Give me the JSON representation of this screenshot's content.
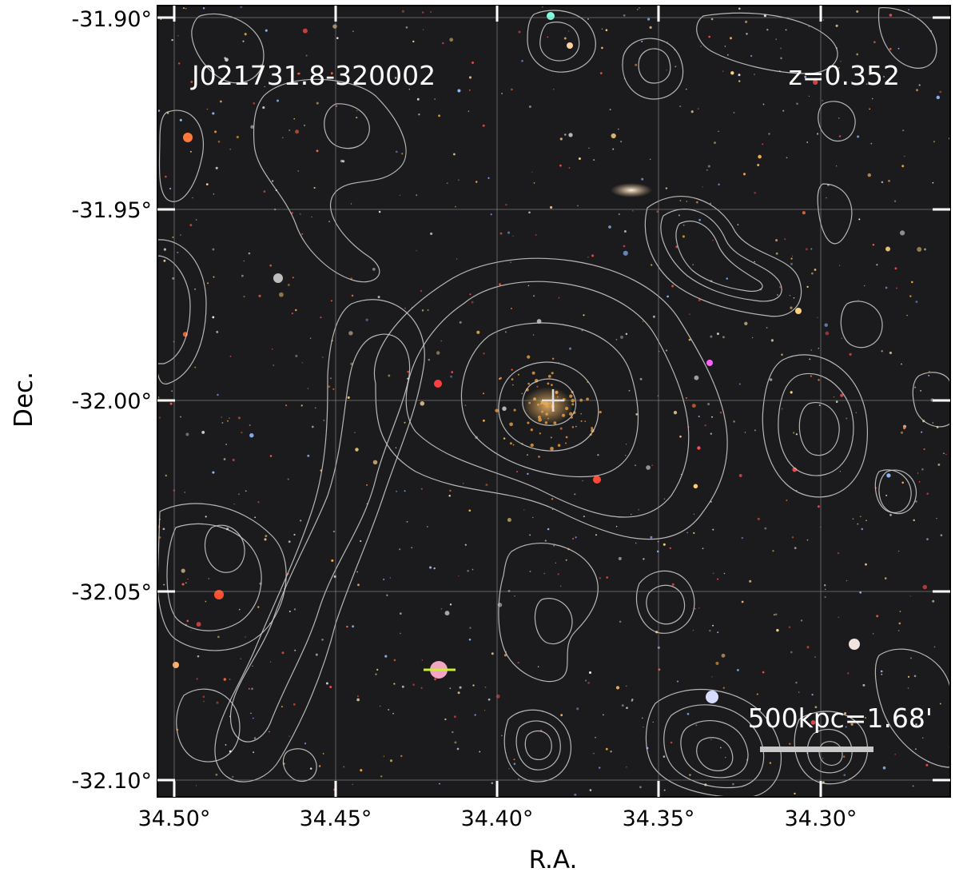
{
  "figure": {
    "object_name": "J021731.8-320002",
    "redshift_label": "z=0.352",
    "scale_bar_label": "500kpc=1.68'",
    "x_axis_title": "R.A.",
    "y_axis_title": "Dec.",
    "x_ticks": [
      "34.50°",
      "34.45°",
      "34.40°",
      "34.35°",
      "34.30°"
    ],
    "y_ticks": [
      "-31.90°",
      "-31.95°",
      "-32.00°",
      "-32.05°",
      "-32.10°"
    ],
    "colors": {
      "sky_background": "#1b1b1d",
      "contour": "#d2d2d2",
      "grid": "#9a9a9a",
      "overlay_text": "#ffffff",
      "scale_bar": "#c8c8c8"
    }
  }
}
